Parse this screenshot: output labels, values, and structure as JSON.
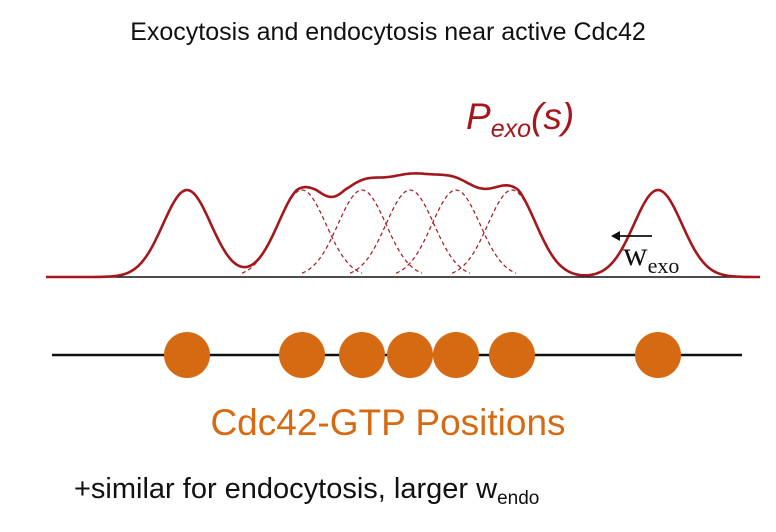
{
  "title": "Exocytosis and endocytosis near active Cdc42",
  "curve_label": {
    "main": "P",
    "subscript": "exo",
    "argument": "(s)"
  },
  "width_label": {
    "main": "w",
    "subscript": "exo"
  },
  "positions_label": "Cdc42-GTP Positions",
  "footnote": {
    "text": "+similar for endocytosis, larger w",
    "subscript": "endo"
  },
  "colors": {
    "curve": "#a3171d",
    "dots": "#d66a12",
    "text": "#111111"
  },
  "cdc42_positions": [
    187,
    302,
    362,
    410,
    456,
    512,
    658
  ]
}
